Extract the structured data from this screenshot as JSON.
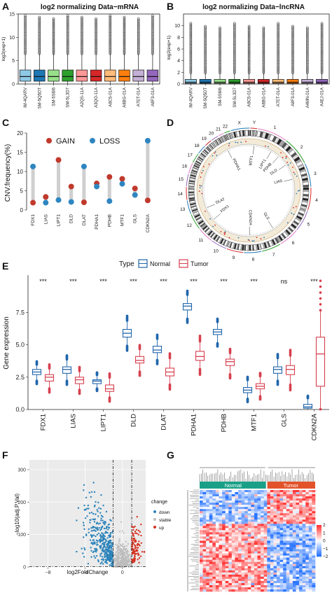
{
  "panels": {
    "A": "A",
    "B": "B",
    "C": "C",
    "D": "D",
    "E": "E",
    "F": "F",
    "G": "G"
  },
  "colors": {
    "accent_blue": "#2166ac",
    "accent_red": "#d6404e"
  },
  "chart_data": [
    {
      "id": "A",
      "type": "box",
      "title": "log2 normalizing Data−mRNA",
      "ylabel": "log2(exp+1)",
      "ylim": [
        0,
        15
      ],
      "yticks": [
        0,
        5,
        10,
        15
      ],
      "categories": [
        "IM-4QARV",
        "SM-5Q5DT",
        "SM-5S6I6",
        "SM-5L3D7",
        "A2QS-11A",
        "A3QO-11A",
        "A8C5-01A",
        "A8BG-01A",
        "A7ET-01A",
        "A8F3-01A"
      ],
      "box_colors": [
        "#8ecae6",
        "#1f77b4",
        "#98df8a",
        "#2ca02c",
        "#ff9896",
        "#d62728",
        "#ffbb78",
        "#ff7f0e",
        "#c5b0d5",
        "#9467bd"
      ],
      "stats": {
        "min": 0,
        "q1": 0.6,
        "median": 1.6,
        "q3": 3.0,
        "whisker_high": 6.5,
        "outlier_max": 14.8
      }
    },
    {
      "id": "B",
      "type": "box",
      "title": "log2 normalizing Data−lncRNA",
      "ylabel": "log2(exp+1)",
      "ylim": [
        0,
        12
      ],
      "yticks": [
        0,
        2,
        4,
        6,
        8,
        10
      ],
      "categories": [
        "IM-4QARV",
        "SM-5Q5DT",
        "SM-5S6I6",
        "SM-5L3D7",
        "A8C5-01A",
        "A8BG-01A",
        "A7ET-01A",
        "A8F3-01A",
        "A4MN-01A",
        "A4EJ-01A"
      ],
      "box_colors": [
        "#8ecae6",
        "#1f77b4",
        "#98df8a",
        "#2ca02c",
        "#ff9896",
        "#d62728",
        "#ffbb78",
        "#ff7f0e",
        "#c5b0d5",
        "#9467bd"
      ],
      "stats": {
        "min": 0,
        "q1": 0.1,
        "median": 0.3,
        "q3": 0.8,
        "whisker_high": 1.9,
        "outlier_max": 10.5
      }
    },
    {
      "id": "C",
      "type": "lollipop",
      "ylabel": "CNV.frequency(%)",
      "ylim": [
        0,
        20
      ],
      "yticks": [
        0,
        5,
        10,
        15,
        20
      ],
      "legend": [
        {
          "label": "GAIN",
          "color": "#c0392b"
        },
        {
          "label": "LOSS",
          "color": "#2e86c1"
        }
      ],
      "categories": [
        "FDX1",
        "LIAS",
        "LIPT1",
        "DLD",
        "DLAT",
        "PDHA1",
        "PDHB",
        "MTF1",
        "GLS",
        "CDKN2A"
      ],
      "gain": [
        1.9,
        3.4,
        13.0,
        6.1,
        2.0,
        6.9,
        8.6,
        8.1,
        5.6,
        2.5
      ],
      "loss": [
        11.3,
        1.9,
        2.6,
        2.1,
        11.3,
        6.1,
        2.3,
        6.8,
        3.9,
        18.0
      ]
    },
    {
      "id": "D",
      "type": "circos",
      "chromosomes": [
        "1",
        "2",
        "3",
        "4",
        "5",
        "6",
        "7",
        "8",
        "9",
        "10",
        "11",
        "12",
        "13",
        "14",
        "15",
        "16",
        "17",
        "18",
        "19",
        "20",
        "21",
        "22",
        "X",
        "Y"
      ],
      "gene_labels": [
        "PDHA1",
        "MTF1",
        "LIPT1",
        "PDHB",
        "DLD",
        "LIAS",
        "GLS",
        "CDKN2A",
        "FDX1",
        "DLAT"
      ]
    },
    {
      "id": "E",
      "type": "box",
      "ylabel": "Gene expression",
      "ylim": [
        0,
        10.4
      ],
      "yticks": [
        0.0,
        2.5,
        5.0,
        7.5
      ],
      "legend_title": "Type",
      "legend": [
        {
          "label": "Normal",
          "color": "#2166ac"
        },
        {
          "label": "Tumor",
          "color": "#d6404e"
        }
      ],
      "categories": [
        "FDX1",
        "LIAS",
        "LIPT1",
        "DLD",
        "DLAT",
        "PDHA1",
        "PDHB",
        "MTF1",
        "GLS",
        "CDKN2A"
      ],
      "significance": [
        "***",
        "***",
        "***",
        "***",
        "***",
        "***",
        "***",
        "***",
        "ns",
        "***"
      ],
      "normal": [
        [
          2.3,
          2.7,
          2.9,
          3.1,
          3.4
        ],
        [
          2.3,
          2.8,
          3.1,
          3.3,
          3.8
        ],
        [
          1.7,
          2.0,
          2.2,
          2.3,
          2.6
        ],
        [
          5.0,
          5.6,
          5.9,
          6.2,
          6.8
        ],
        [
          3.9,
          4.4,
          4.6,
          4.9,
          5.4
        ],
        [
          7.1,
          7.7,
          8.0,
          8.2,
          8.8
        ],
        [
          5.2,
          5.8,
          6.0,
          6.2,
          6.7
        ],
        [
          0.9,
          1.3,
          1.5,
          1.7,
          2.2
        ],
        [
          2.3,
          2.8,
          3.1,
          3.3,
          3.9
        ],
        [
          0.0,
          0.1,
          0.2,
          0.4,
          0.8
        ]
      ],
      "tumor": [
        [
          1.7,
          2.2,
          2.5,
          2.7,
          3.1
        ],
        [
          1.6,
          2.0,
          2.3,
          2.5,
          2.9
        ],
        [
          1.0,
          1.4,
          1.6,
          1.9,
          2.4
        ],
        [
          3.0,
          3.6,
          3.8,
          4.1,
          4.6
        ],
        [
          2.0,
          2.6,
          2.9,
          3.2,
          3.9
        ],
        [
          3.2,
          3.8,
          4.1,
          4.5,
          5.2
        ],
        [
          2.8,
          3.4,
          3.7,
          3.9,
          4.3
        ],
        [
          1.1,
          1.6,
          1.8,
          2.0,
          2.5
        ],
        [
          2.0,
          2.7,
          3.1,
          3.4,
          4.1
        ],
        [
          0.1,
          1.8,
          4.3,
          5.6,
          7.6
        ]
      ]
    },
    {
      "id": "F",
      "type": "scatter",
      "xlabel": "log2FoldChange",
      "ylabel": "−log10(adj.P.Val)",
      "xlim": [
        -10,
        2.5
      ],
      "ylim": [
        0,
        330
      ],
      "xticks": [
        -8,
        -4,
        0
      ],
      "yticks": [
        0,
        100,
        200,
        300
      ],
      "legend_title": "change",
      "legend": [
        {
          "label": "down",
          "color": "#2b83ba"
        },
        {
          "label": "stable",
          "color": "#bdbdbd"
        },
        {
          "label": "up",
          "color": "#d7301f"
        }
      ],
      "thresholds": {
        "x": [
          -1,
          1
        ],
        "y": 1.3
      }
    },
    {
      "id": "G",
      "type": "heatmap",
      "groups": [
        {
          "label": "Normal",
          "color": "#1ba088"
        },
        {
          "label": "Tumor",
          "color": "#e2532a"
        }
      ],
      "scale": {
        "min": -2,
        "max": 2,
        "ticks": [
          "2",
          "1",
          "0",
          "−1",
          "−2"
        ]
      }
    }
  ]
}
